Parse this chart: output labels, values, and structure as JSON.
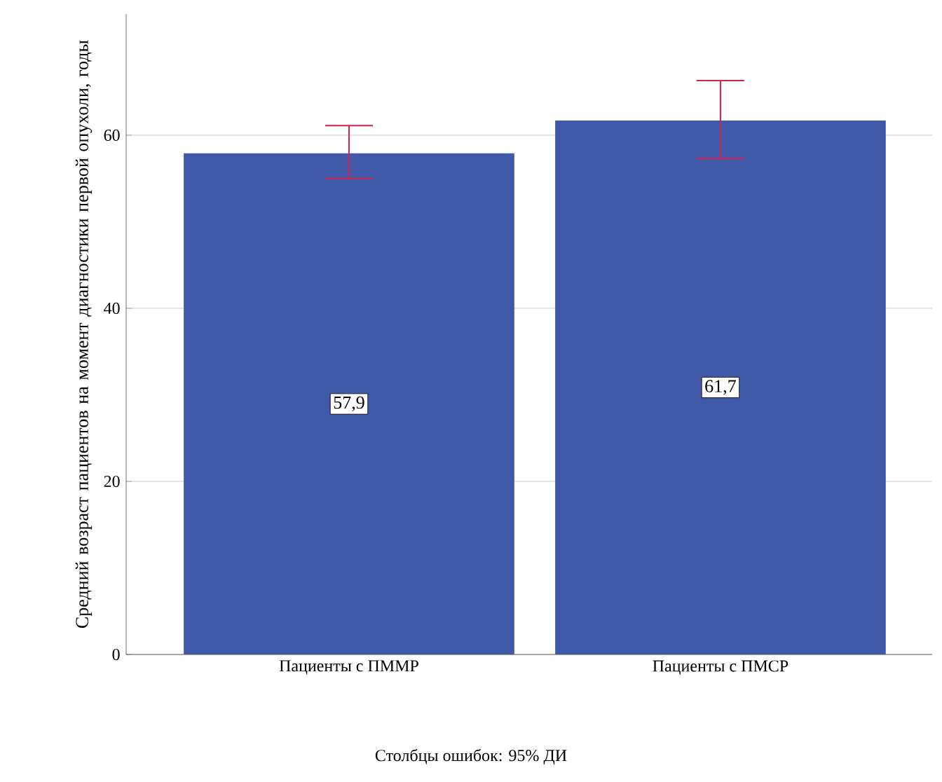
{
  "chart_data": {
    "type": "bar",
    "ylabel": "Средний возраст пациентов на момент диагностики первой опухоли, годы",
    "categories": [
      "Пациенты с ПММР",
      "Пациенты с ПМСР"
    ],
    "values": [
      57.9,
      61.7
    ],
    "value_labels": [
      "57,9",
      "61,7"
    ],
    "errors": [
      [
        55.0,
        61.1
      ],
      [
        57.3,
        66.3
      ]
    ],
    "color": "#3f58a8",
    "ylim": [
      0,
      74
    ],
    "yticks": [
      0,
      20,
      40,
      60
    ],
    "grid": "y",
    "annotations": [
      "Столбцы ошибок: 95% ДИ"
    ]
  }
}
